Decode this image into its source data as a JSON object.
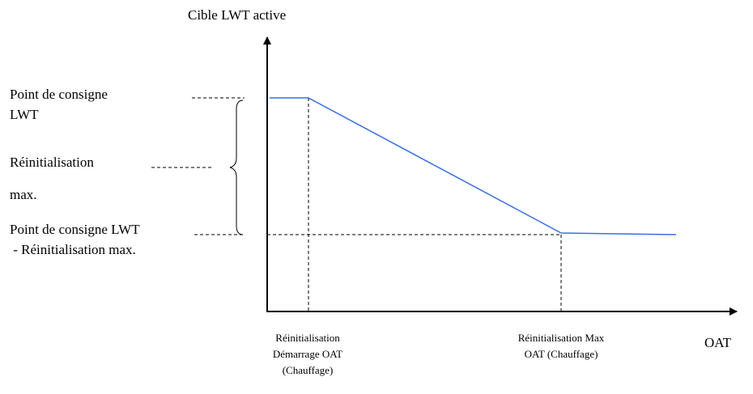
{
  "y_axis_label": "Cible LWT active",
  "x_axis_label": "OAT",
  "left_labels": [
    {
      "lines": [
        "Point de consigne",
        "LWT"
      ]
    },
    {
      "lines": [
        "Réinitialisation",
        "max."
      ]
    },
    {
      "lines": [
        "Point de consigne LWT",
        " - Réinitialisation max."
      ]
    }
  ],
  "bottom_labels": [
    {
      "lines": [
        "Réinitialisation",
        "Démarrage OAT",
        "(Chauffage)"
      ]
    },
    {
      "lines": [
        "Réinitialisation Max",
        "OAT (Chauffage)"
      ]
    }
  ]
}
